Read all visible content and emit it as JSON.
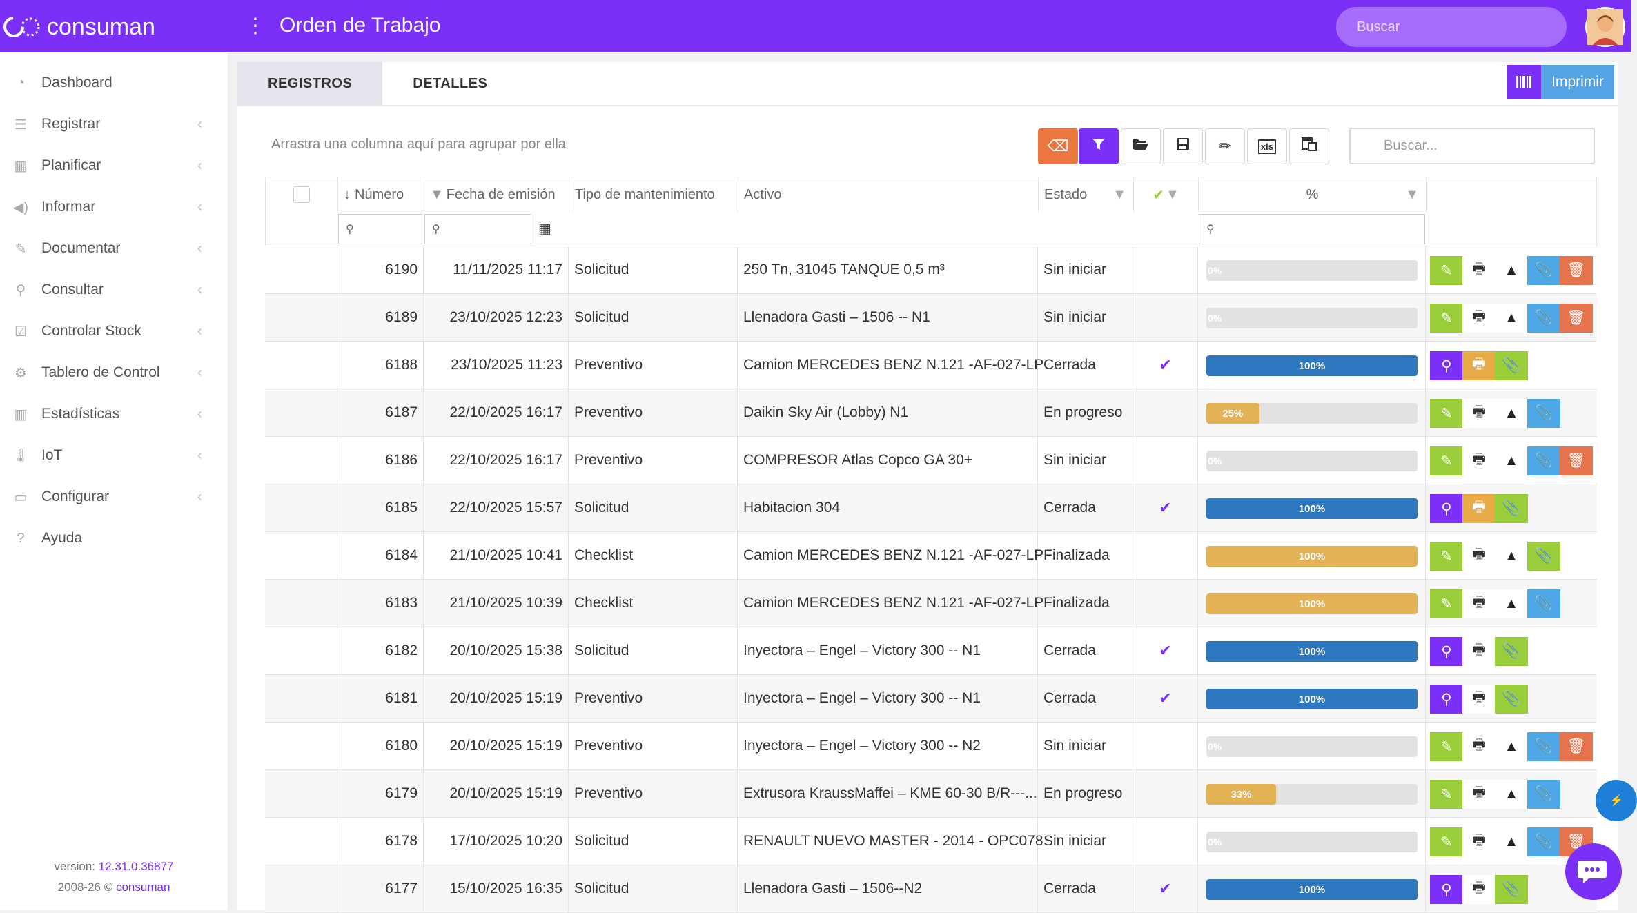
{
  "app": {
    "brand": "consuman",
    "title": "Orden de Trabajo",
    "search_placeholder": "Buscar"
  },
  "sidebar": {
    "items": [
      {
        "label": "Dashboard",
        "icon": "dashboard-icon",
        "chevron": false
      },
      {
        "label": "Registrar",
        "icon": "list-icon",
        "chevron": true
      },
      {
        "label": "Planificar",
        "icon": "calendar-icon",
        "chevron": true
      },
      {
        "label": "Informar",
        "icon": "megaphone-icon",
        "chevron": true
      },
      {
        "label": "Documentar",
        "icon": "edit-icon",
        "chevron": true
      },
      {
        "label": "Consultar",
        "icon": "search-icon",
        "chevron": true
      },
      {
        "label": "Controlar Stock",
        "icon": "checkbox-icon",
        "chevron": true
      },
      {
        "label": "Tablero de Control",
        "icon": "gears-icon",
        "chevron": true
      },
      {
        "label": "Estadísticas",
        "icon": "bar-chart-icon",
        "chevron": true
      },
      {
        "label": "IoT",
        "icon": "thermometer-icon",
        "chevron": true
      },
      {
        "label": "Configurar",
        "icon": "monitor-icon",
        "chevron": true
      },
      {
        "label": "Ayuda",
        "icon": "help-icon",
        "chevron": false
      }
    ],
    "version_label": "version:",
    "version": "12.31.0.36877",
    "copyright_prefix": "2008-26 ©",
    "copyright_link": "consuman"
  },
  "tabs": [
    {
      "label": "REGISTROS",
      "active": true
    },
    {
      "label": "DETALLES",
      "active": false
    }
  ],
  "print_label": "Imprimir",
  "group_hint": "Arrastra una columna aquí para agrupar por ella",
  "grid_search_placeholder": "Buscar...",
  "columns": {
    "numero": "Número",
    "fecha": "Fecha de emisión",
    "tipo": "Tipo de mantenimiento",
    "activo": "Activo",
    "estado": "Estado",
    "pct": "%"
  },
  "rows": [
    {
      "num": "6190",
      "fecha": "11/11/2025 11:17",
      "tipo": "Solicitud",
      "activo": "250 Tn, 31045 TANQUE 0,5 m³",
      "estado": "Sin iniciar",
      "check": false,
      "pct": 0,
      "bar": "gray",
      "label": "0%",
      "actions": [
        "edit",
        "print",
        "warn",
        "clip",
        "del"
      ]
    },
    {
      "num": "6189",
      "fecha": "23/10/2025 12:23",
      "tipo": "Solicitud",
      "activo": "Llenadora Gasti – 1506 -- N1",
      "estado": "Sin iniciar",
      "check": false,
      "pct": 0,
      "bar": "gray",
      "label": "0%",
      "actions": [
        "edit",
        "print",
        "warn",
        "clip",
        "del"
      ]
    },
    {
      "num": "6188",
      "fecha": "23/10/2025 11:23",
      "tipo": "Preventivo",
      "activo": "Camion MERCEDES BENZ N.121 -AF-027-LP",
      "estado": "Cerrada",
      "check": true,
      "pct": 100,
      "bar": "blue",
      "label": "100%",
      "actions": [
        "view",
        "printy",
        "clipg"
      ]
    },
    {
      "num": "6187",
      "fecha": "22/10/2025 16:17",
      "tipo": "Preventivo",
      "activo": "Daikin Sky Air (Lobby) N1",
      "estado": "En progreso",
      "check": false,
      "pct": 25,
      "bar": "orange",
      "label": "25%",
      "actions": [
        "edit",
        "print",
        "warn",
        "clip"
      ]
    },
    {
      "num": "6186",
      "fecha": "22/10/2025 16:17",
      "tipo": "Preventivo",
      "activo": "COMPRESOR Atlas Copco GA 30+",
      "estado": "Sin iniciar",
      "check": false,
      "pct": 0,
      "bar": "gray",
      "label": "0%",
      "actions": [
        "edit",
        "print",
        "warn",
        "clip",
        "del"
      ]
    },
    {
      "num": "6185",
      "fecha": "22/10/2025 15:57",
      "tipo": "Solicitud",
      "activo": "Habitacion 304",
      "estado": "Cerrada",
      "check": true,
      "pct": 100,
      "bar": "blue",
      "label": "100%",
      "actions": [
        "view",
        "printy",
        "clipg"
      ]
    },
    {
      "num": "6184",
      "fecha": "21/10/2025 10:41",
      "tipo": "Checklist",
      "activo": "Camion MERCEDES BENZ N.121 -AF-027-LP",
      "estado": "Finalizada",
      "check": false,
      "pct": 100,
      "bar": "orange",
      "label": "100%",
      "actions": [
        "edit",
        "print",
        "warn",
        "clipg"
      ]
    },
    {
      "num": "6183",
      "fecha": "21/10/2025 10:39",
      "tipo": "Checklist",
      "activo": "Camion MERCEDES BENZ N.121 -AF-027-LP",
      "estado": "Finalizada",
      "check": false,
      "pct": 100,
      "bar": "orange",
      "label": "100%",
      "actions": [
        "edit",
        "print",
        "warn",
        "clip"
      ]
    },
    {
      "num": "6182",
      "fecha": "20/10/2025 15:38",
      "tipo": "Solicitud",
      "activo": "Inyectora – Engel – Victory 300 -- N1",
      "estado": "Cerrada",
      "check": true,
      "pct": 100,
      "bar": "blue",
      "label": "100%",
      "actions": [
        "view",
        "print",
        "clipg"
      ]
    },
    {
      "num": "6181",
      "fecha": "20/10/2025 15:19",
      "tipo": "Preventivo",
      "activo": "Inyectora – Engel – Victory 300 -- N1",
      "estado": "Cerrada",
      "check": true,
      "pct": 100,
      "bar": "blue",
      "label": "100%",
      "actions": [
        "view",
        "print",
        "clipg"
      ]
    },
    {
      "num": "6180",
      "fecha": "20/10/2025 15:19",
      "tipo": "Preventivo",
      "activo": "Inyectora – Engel – Victory 300 -- N2",
      "estado": "Sin iniciar",
      "check": false,
      "pct": 0,
      "bar": "gray",
      "label": "0%",
      "actions": [
        "edit",
        "print",
        "warn",
        "clip",
        "del"
      ]
    },
    {
      "num": "6179",
      "fecha": "20/10/2025 15:19",
      "tipo": "Preventivo",
      "activo": "Extrusora KraussMaffei – KME 60-30 B/R---...",
      "estado": "En progreso",
      "check": false,
      "pct": 33,
      "bar": "orange",
      "label": "33%",
      "actions": [
        "edit",
        "print",
        "warn",
        "clip"
      ]
    },
    {
      "num": "6178",
      "fecha": "17/10/2025 10:20",
      "tipo": "Solicitud",
      "activo": "RENAULT NUEVO MASTER - 2014 - OPC078",
      "estado": "Sin iniciar",
      "check": false,
      "pct": 0,
      "bar": "gray",
      "label": "0%",
      "actions": [
        "edit",
        "print",
        "warn",
        "clip",
        "del"
      ]
    },
    {
      "num": "6177",
      "fecha": "15/10/2025 16:35",
      "tipo": "Solicitud",
      "activo": "Llenadora Gasti – 1506--N2",
      "estado": "Cerrada",
      "check": true,
      "pct": 100,
      "bar": "blue",
      "label": "100%",
      "actions": [
        "view",
        "print",
        "clipg"
      ]
    }
  ],
  "colors": {
    "primary": "#7b2ff7",
    "blue_bar": "#2e78c0",
    "orange_bar": "#e2b254",
    "gray_bar": "#e2e2e2"
  }
}
